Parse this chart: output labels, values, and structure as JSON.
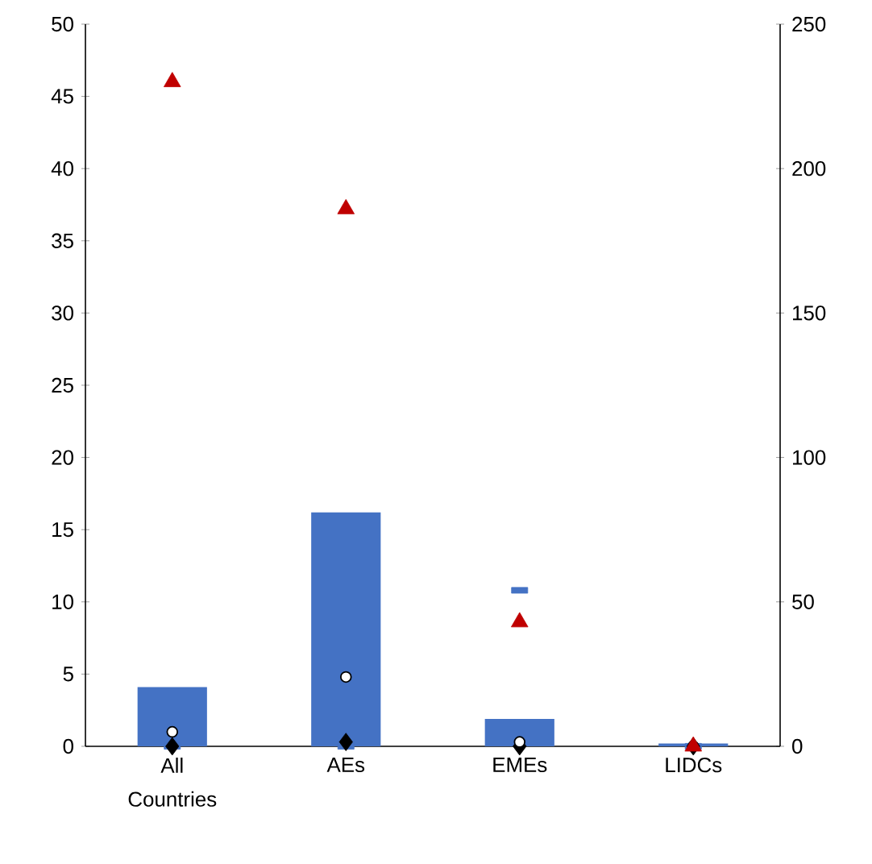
{
  "chart_data": {
    "type": "bar",
    "categories": [
      "All Countries",
      "AEs",
      "EMEs",
      "LIDCs"
    ],
    "ylim": [
      0,
      50
    ],
    "yticks": [
      0,
      5,
      10,
      15,
      20,
      25,
      30,
      35,
      40,
      45,
      50
    ],
    "y2lim": [
      0,
      250
    ],
    "y2ticks": [
      0,
      50,
      100,
      150,
      200,
      250
    ],
    "grid": false,
    "series": [
      {
        "color": "#4472c4",
        "values": [
          4.1,
          16.2,
          1.9,
          0.2
        ]
      },
      {
        "type": "scatter",
        "marker": "square",
        "color": "#4472c4",
        "values": [
          0,
          0,
          10.8,
          0
        ]
      },
      {
        "type": "scatter",
        "marker": "diamond",
        "color": "#000000",
        "values": [
          0,
          0.3,
          0,
          0
        ]
      },
      {
        "type": "scatter",
        "marker": "circle",
        "color": "#ffffff",
        "values": [
          1.0,
          4.8,
          0.3,
          0
        ]
      },
      {
        "type": "scatter",
        "marker": "triangle",
        "color": "#c00000",
        "axis": "y2",
        "values": [
          230,
          186,
          43,
          0
        ]
      }
    ]
  }
}
